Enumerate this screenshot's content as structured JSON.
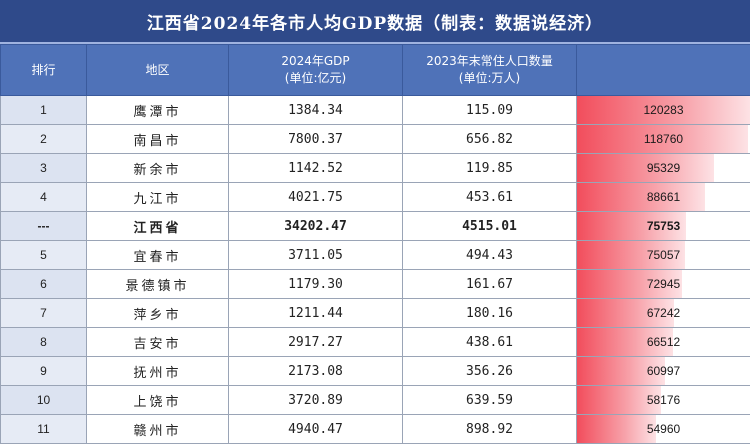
{
  "title": "江西省2024年各市人均GDP数据（制表：数据说经济）",
  "headers": {
    "rank": "排行",
    "region": "地区",
    "gdp_line1": "2024年GDP",
    "gdp_line2": "(单位:亿元)",
    "pop_line1": "2023年末常住人口数量",
    "pop_line2": "(单位:万人)",
    "per_capita": ""
  },
  "rows": [
    {
      "rank": "1",
      "region": "鹰潭市",
      "gdp": "1384.34",
      "pop": "115.09",
      "per_capita": "120283",
      "value": 120283
    },
    {
      "rank": "2",
      "region": "南昌市",
      "gdp": "7800.37",
      "pop": "656.82",
      "per_capita": "118760",
      "value": 118760
    },
    {
      "rank": "3",
      "region": "新余市",
      "gdp": "1142.52",
      "pop": "119.85",
      "per_capita": "95329",
      "value": 95329
    },
    {
      "rank": "4",
      "region": "九江市",
      "gdp": "4021.75",
      "pop": "453.61",
      "per_capita": "88661",
      "value": 88661
    },
    {
      "rank": "---",
      "region": "江西省",
      "gdp": "34202.47",
      "pop": "4515.01",
      "per_capita": "75753",
      "value": 75753,
      "highlight": true
    },
    {
      "rank": "5",
      "region": "宜春市",
      "gdp": "3711.05",
      "pop": "494.43",
      "per_capita": "75057",
      "value": 75057
    },
    {
      "rank": "6",
      "region": "景德镇市",
      "gdp": "1179.30",
      "pop": "161.67",
      "per_capita": "72945",
      "value": 72945
    },
    {
      "rank": "7",
      "region": "萍乡市",
      "gdp": "1211.44",
      "pop": "180.16",
      "per_capita": "67242",
      "value": 67242
    },
    {
      "rank": "8",
      "region": "吉安市",
      "gdp": "2917.27",
      "pop": "438.61",
      "per_capita": "66512",
      "value": 66512
    },
    {
      "rank": "9",
      "region": "抚州市",
      "gdp": "2173.08",
      "pop": "356.26",
      "per_capita": "60997",
      "value": 60997
    },
    {
      "rank": "10",
      "region": "上饶市",
      "gdp": "3720.89",
      "pop": "639.59",
      "per_capita": "58176",
      "value": 58176
    },
    {
      "rank": "11",
      "region": "赣州市",
      "gdp": "4940.47",
      "pop": "898.92",
      "per_capita": "54960",
      "value": 54960
    }
  ],
  "colors": {
    "title_bg": "#2f4a8a",
    "header_bg": "#4f72b8",
    "bar_start": "#f24d5c",
    "bar_end": "#fde2e5"
  }
}
